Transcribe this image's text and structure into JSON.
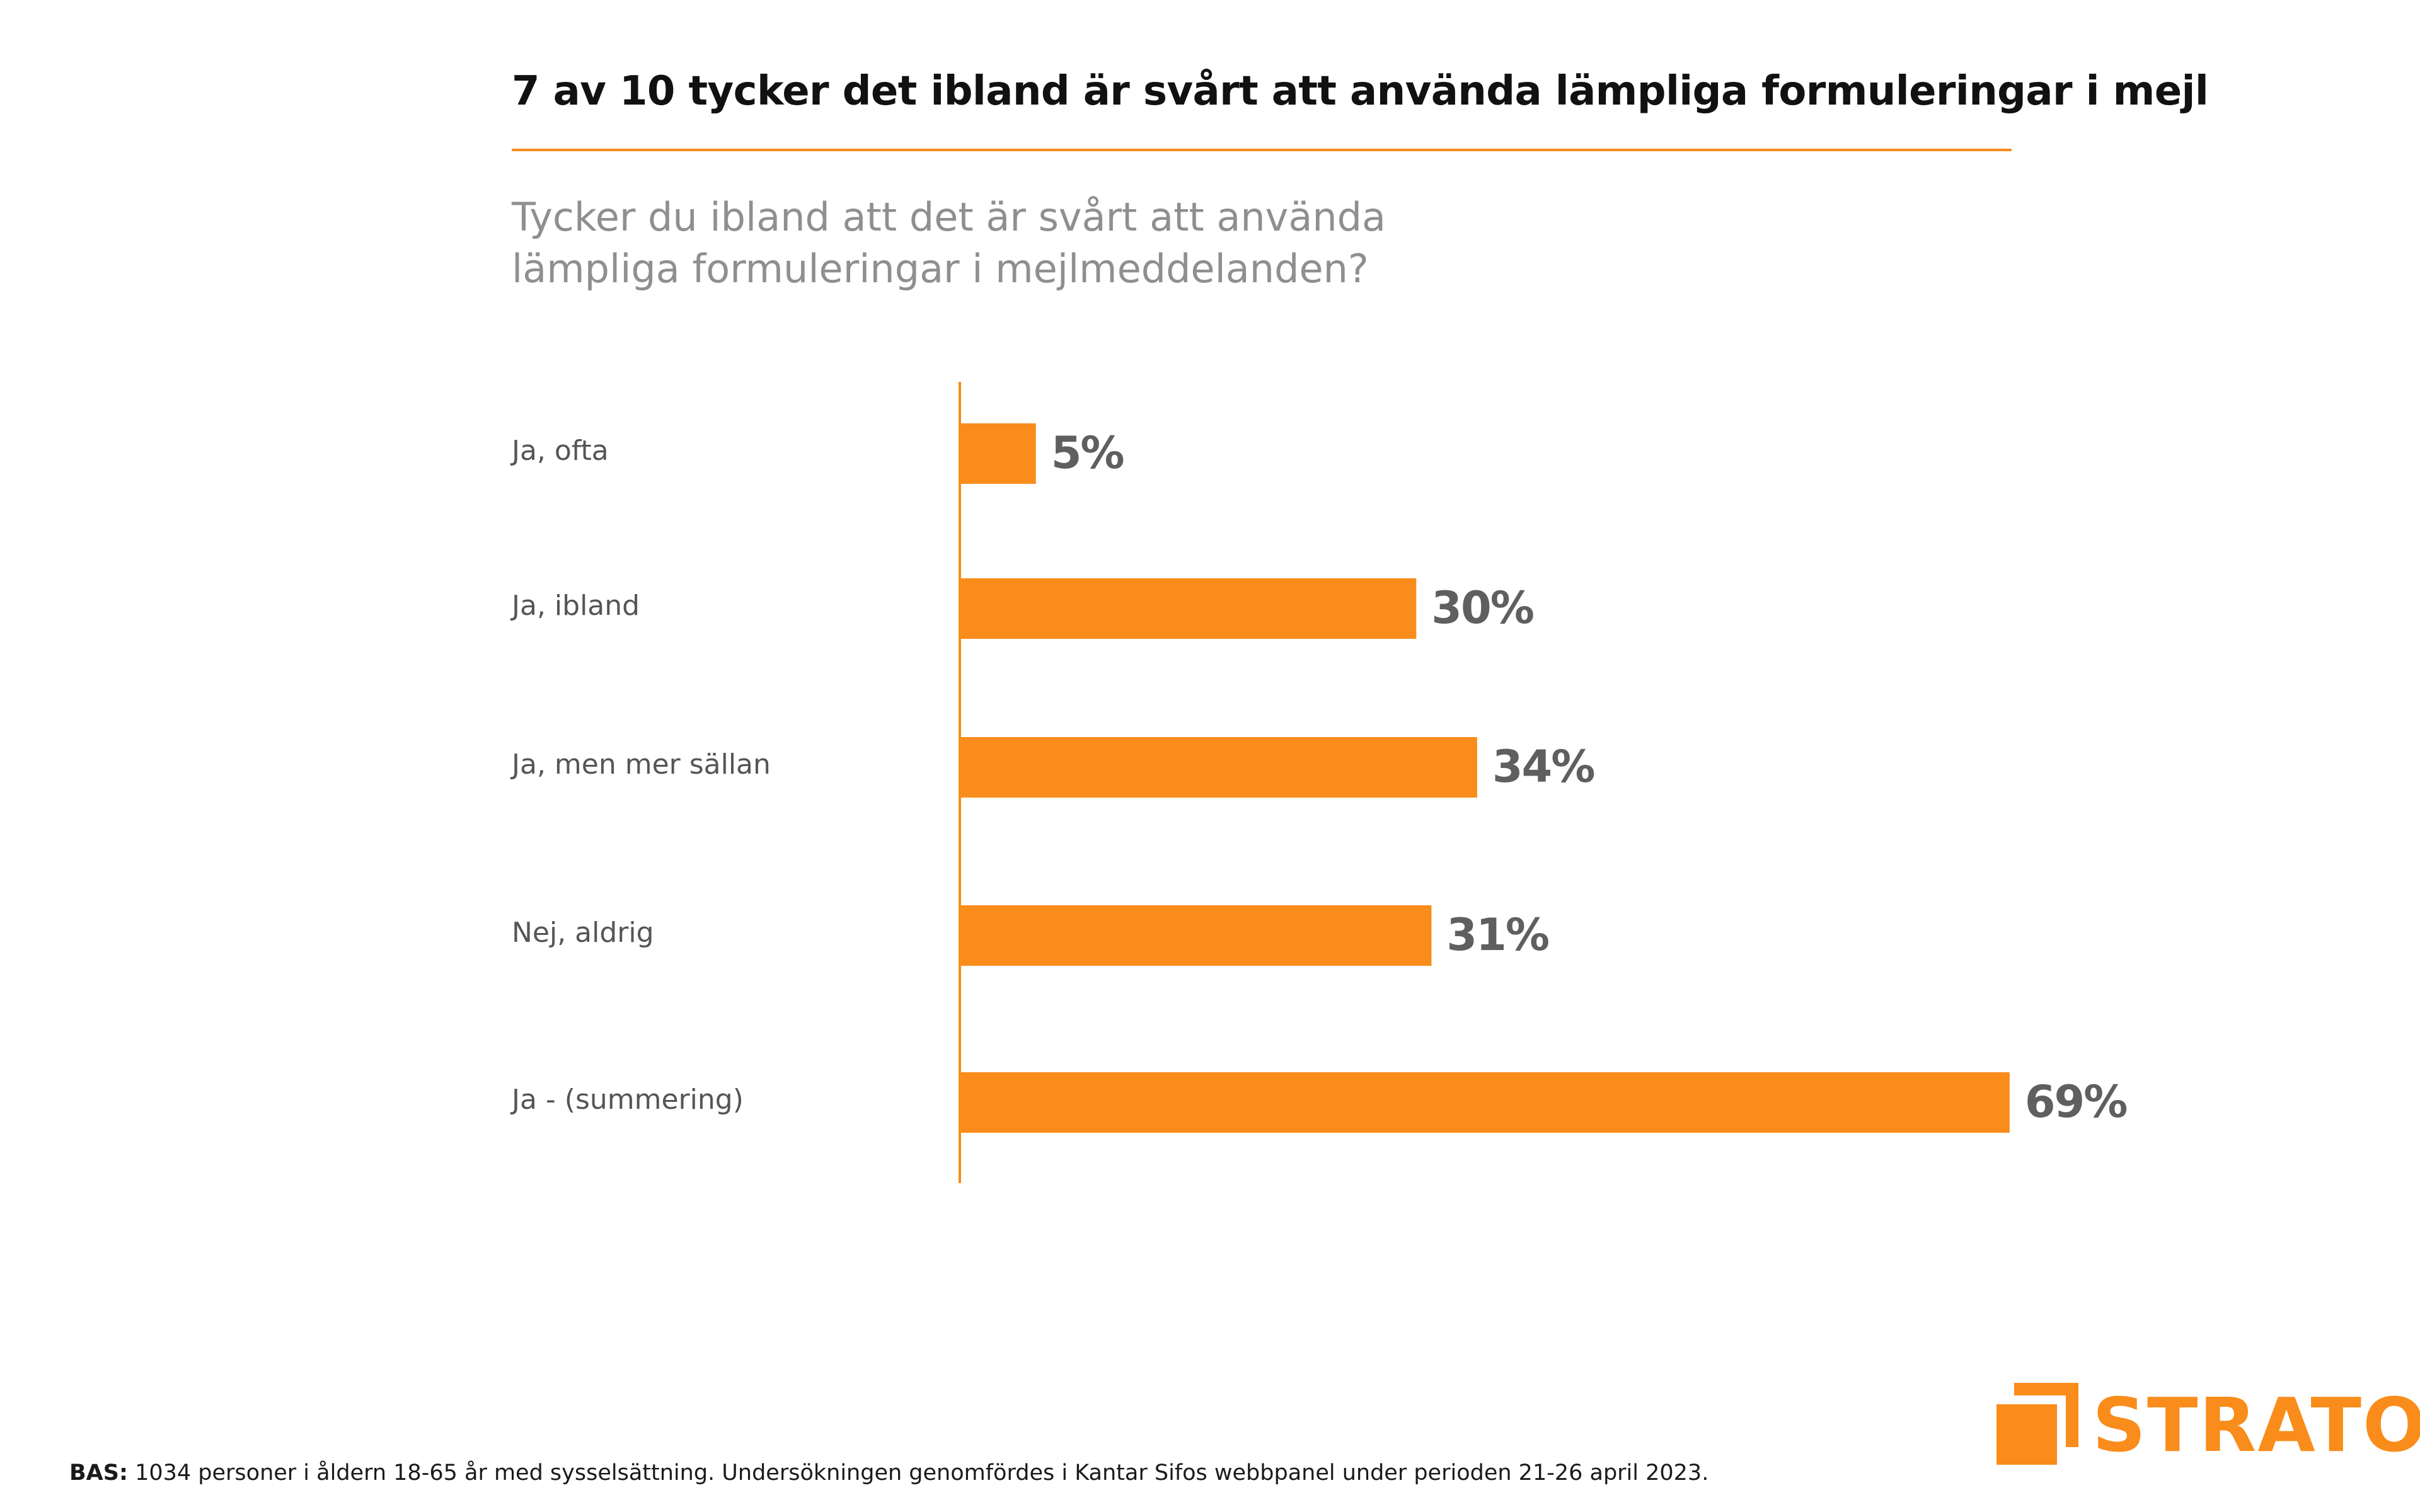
{
  "header": {
    "title": "7 av 10 tycker det ibland är svårt att använda lämpliga formuleringar i mejl",
    "question_line1": "Tycker du ibland att det är svårt att använda",
    "question_line2": "lämpliga formuleringar i mejlmeddelanden?"
  },
  "chart_data": {
    "type": "bar",
    "orientation": "horizontal",
    "title": "7 av 10 tycker det ibland är svårt att använda lämpliga formuleringar i mejl",
    "subtitle": "Tycker du ibland att det är svårt att använda lämpliga formuleringar i mejlmeddelanden?",
    "categories": [
      "Ja, ofta",
      "Ja, ibland",
      "Ja, men mer sällan",
      "Nej, aldrig",
      "Ja - (summering)"
    ],
    "values": [
      5,
      30,
      34,
      31,
      69
    ],
    "value_labels": [
      "5%",
      "30%",
      "34%",
      "31%",
      "69%"
    ],
    "unit": "%",
    "xlim": [
      0,
      70
    ],
    "xlabel": "",
    "ylabel": "",
    "grid": false,
    "legend": "none",
    "bar_color": "#f98c1a"
  },
  "footnote": {
    "label": "BAS:",
    "text": " 1034 personer i åldern 18-65 år med sysselsättning. Undersökningen genomfördes i Kantar Sifos webbpanel under perioden 21-26 april 2023."
  },
  "logo": {
    "text": "STRATO",
    "color": "#f98c1a"
  },
  "colors": {
    "accent": "#f98c1a",
    "value_text": "#5f5f5f",
    "category_text": "#555555",
    "question_text": "#8f8f8f"
  }
}
